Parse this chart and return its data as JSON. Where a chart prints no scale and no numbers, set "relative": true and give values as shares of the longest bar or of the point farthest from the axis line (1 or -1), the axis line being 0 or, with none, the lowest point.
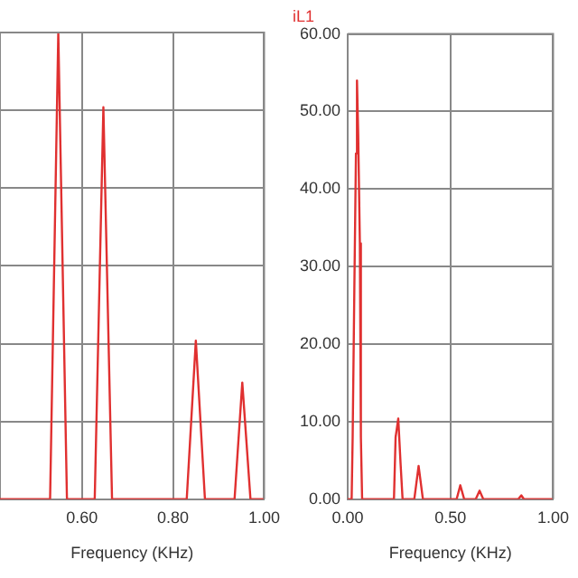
{
  "chart_data": [
    {
      "type": "line",
      "xlabel": "Frequency (KHz)",
      "relative": true,
      "xlim": [
        0.42,
        1.0
      ],
      "xticks": [
        {
          "value": 0.6,
          "label": "0.60"
        },
        {
          "value": 0.8,
          "label": "0.80"
        },
        {
          "value": 1.0,
          "label": "1.00"
        }
      ],
      "grid": true,
      "legend": false,
      "marker": "none",
      "x": [
        0.42,
        0.53,
        0.548,
        0.567,
        0.628,
        0.647,
        0.666,
        0.83,
        0.85,
        0.87,
        0.935,
        0.952,
        0.97,
        1.0
      ],
      "series": [
        {
          "color": "#e03030",
          "values": [
            0,
            0,
            1,
            0,
            0,
            0.84,
            0,
            0,
            0.34,
            0,
            0,
            0.25,
            0,
            0
          ]
        }
      ]
    },
    {
      "type": "line",
      "title": "iL1",
      "xlabel": "Frequency (KHz)",
      "xlim": [
        0,
        1.0
      ],
      "xticks": [
        {
          "value": 0,
          "label": "0.00"
        },
        {
          "value": 0.5,
          "label": "0.50"
        },
        {
          "value": 1.0,
          "label": "1.00"
        }
      ],
      "ylim": [
        0,
        60
      ],
      "yticks": [
        {
          "value": 0,
          "label": "0.00"
        },
        {
          "value": 10,
          "label": "10.00"
        },
        {
          "value": 20,
          "label": "20.00"
        },
        {
          "value": 30,
          "label": "30.00"
        },
        {
          "value": 40,
          "label": "40.00"
        },
        {
          "value": 50,
          "label": "50.00"
        },
        {
          "value": 60,
          "label": "60.00"
        }
      ],
      "grid": true,
      "legend": false,
      "marker": "none",
      "x": [
        0,
        0.019,
        0.024,
        0.032,
        0.04,
        0.045,
        0.051,
        0.059,
        0.064,
        0.07,
        0.225,
        0.233,
        0.246,
        0.257,
        0.267,
        0.324,
        0.345,
        0.366,
        0.53,
        0.548,
        0.567,
        0.623,
        0.642,
        0.66,
        0.83,
        0.845,
        0.858,
        1.0
      ],
      "series": [
        {
          "color": "#e03030",
          "values": [
            0,
            0,
            8.1,
            26.8,
            44.6,
            54,
            47,
            33,
            8,
            0,
            0,
            8,
            10.4,
            4.7,
            0,
            0,
            4.3,
            0,
            0,
            1.8,
            0,
            0,
            1.1,
            0,
            0,
            0.5,
            0,
            0
          ]
        }
      ]
    }
  ]
}
